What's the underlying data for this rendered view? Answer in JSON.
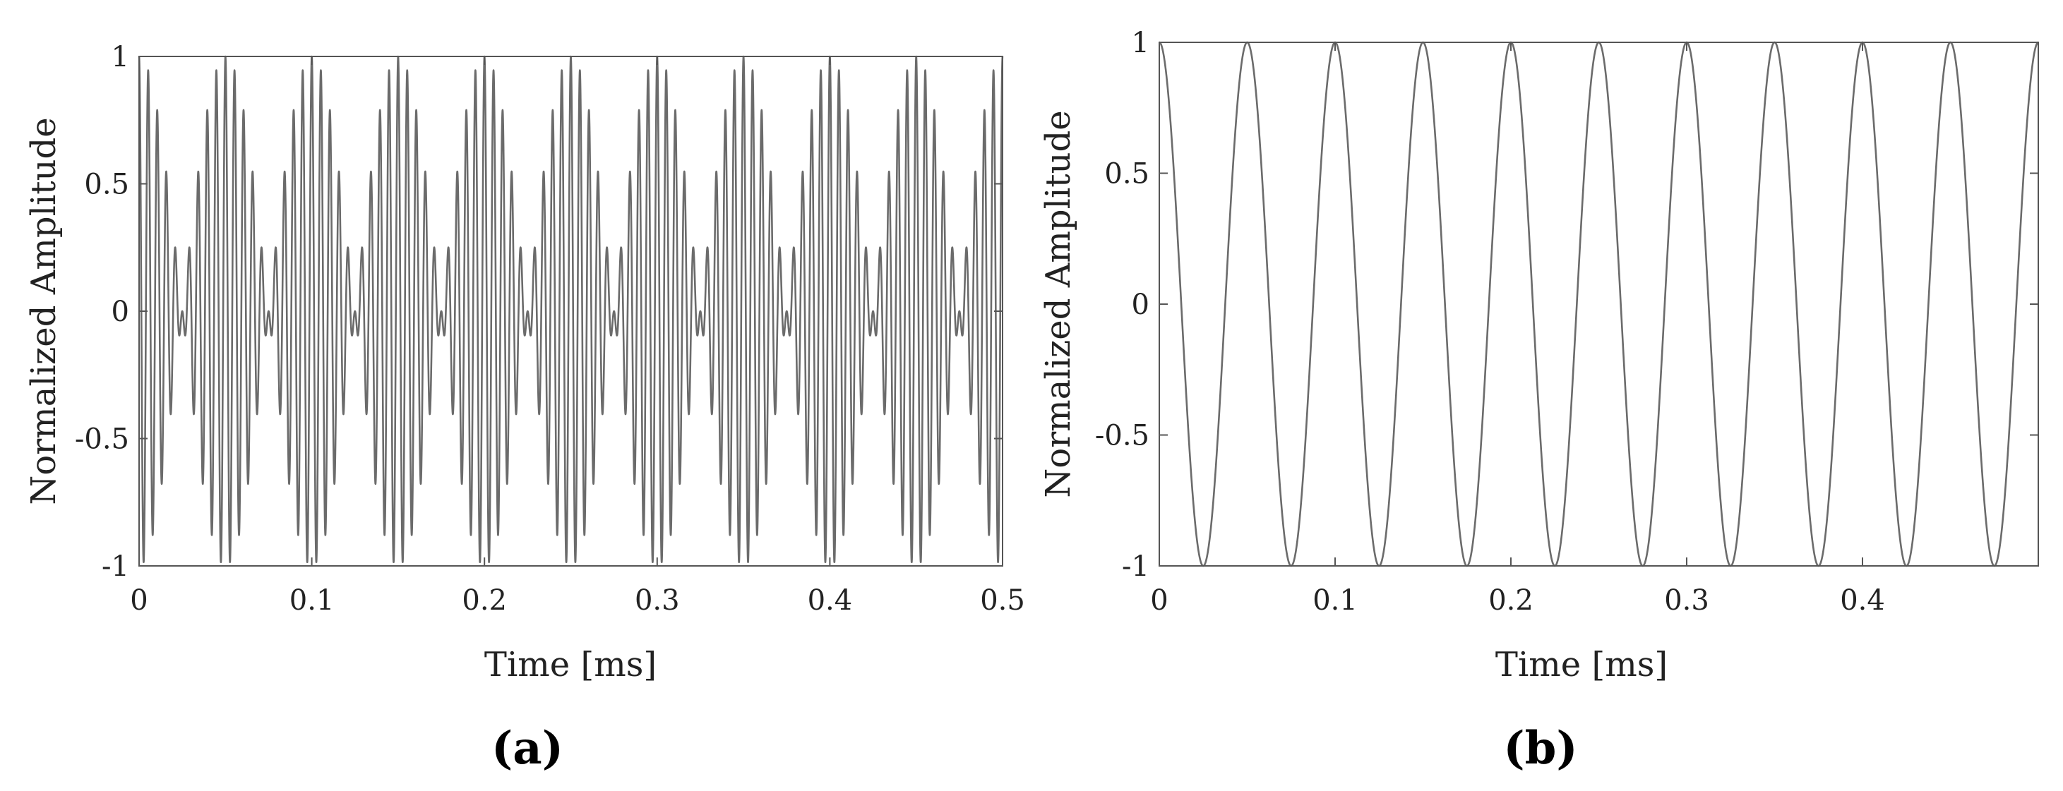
{
  "colors": {
    "trace": "#6b6b6b",
    "frame": "#555555",
    "text": "#222222"
  },
  "chart_data": [
    {
      "type": "line",
      "panel_label": "(a)",
      "title": "",
      "xlabel": "Time [ms]",
      "ylabel": "Normalized Amplitude",
      "xlim": [
        0,
        0.5
      ],
      "ylim": [
        -1,
        1
      ],
      "xticks": [
        0,
        0.1,
        0.2,
        0.3,
        0.4,
        0.5
      ],
      "xtick_labels": [
        "0",
        "0.1",
        "0.2",
        "0.3",
        "0.4",
        "0.5"
      ],
      "yticks": [
        1,
        0.5,
        0,
        -0.5,
        -1
      ],
      "ytick_labels": [
        "1",
        "0.5",
        "0",
        "-0.5",
        "-1"
      ],
      "grid": false,
      "series": [
        {
          "function": "0.5*cos(2*pi*180*t) + 0.5*cos(2*pi*200*t)",
          "t_unit": "ms",
          "t_range": [
            0,
            0.5
          ],
          "carrier_cycles_per_ms": 190,
          "envelope_period_ms": 0.05
        }
      ]
    },
    {
      "type": "line",
      "panel_label": "(b)",
      "title": "",
      "xlabel": "Time [ms]",
      "ylabel": "Normalized Amplitude",
      "xlim": [
        0,
        0.5
      ],
      "ylim": [
        -1,
        1
      ],
      "xticks": [
        0,
        0.1,
        0.2,
        0.3,
        0.4
      ],
      "xtick_labels": [
        "0",
        "0.1",
        "0.2",
        "0.3",
        "0.4"
      ],
      "yticks": [
        1,
        0.5,
        0,
        -0.5,
        -1
      ],
      "ytick_labels": [
        "1",
        "0.5",
        "0",
        "-0.5",
        "-1"
      ],
      "grid": false,
      "series": [
        {
          "function": "cos(2*pi*20*t)",
          "t_unit": "ms",
          "t_range": [
            0,
            0.5
          ],
          "period_ms": 0.05
        }
      ]
    }
  ]
}
